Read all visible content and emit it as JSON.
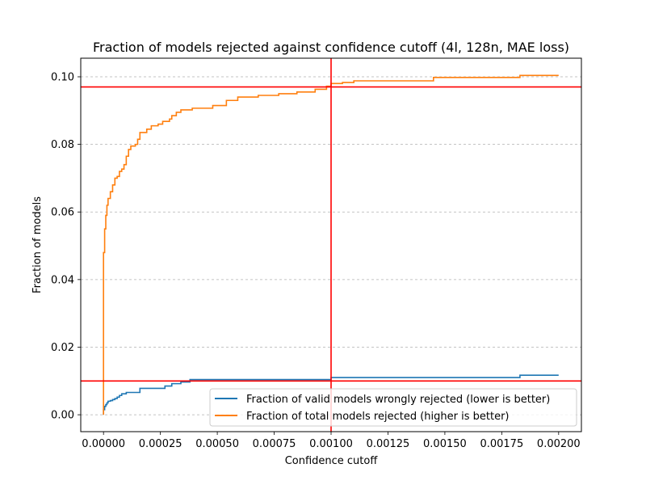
{
  "chart_data": {
    "type": "line",
    "title": "Fraction of models rejected against confidence cutoff (4l, 128n, MAE loss)",
    "xlabel": "Confidence cutoff",
    "ylabel": "Fraction of models",
    "xlim": [
      -0.0001,
      0.0021
    ],
    "ylim": [
      -0.005,
      0.1055
    ],
    "grid": "y-dashed",
    "legend_position": "lower-right",
    "x_ticks": [
      "0.00000",
      "0.00025",
      "0.00050",
      "0.00075",
      "0.00100",
      "0.00125",
      "0.00150",
      "0.00175",
      "0.00200"
    ],
    "x_tick_values": [
      0,
      0.00025,
      0.0005,
      0.00075,
      0.001,
      0.00125,
      0.0015,
      0.00175,
      0.002
    ],
    "y_ticks": [
      "0.00",
      "0.02",
      "0.04",
      "0.06",
      "0.08",
      "0.10"
    ],
    "y_tick_values": [
      0,
      0.02,
      0.04,
      0.06,
      0.08,
      0.1
    ],
    "reference_lines": [
      {
        "orientation": "vertical",
        "value": 0.001,
        "color": "#ff0000"
      },
      {
        "orientation": "horizontal",
        "value": 0.097,
        "color": "#ff0000"
      },
      {
        "orientation": "horizontal",
        "value": 0.01,
        "color": "#ff0000"
      }
    ],
    "series": [
      {
        "name": "Fraction of valid models wrongly rejected (lower is better)",
        "color": "#1f77b4",
        "step": true,
        "points": [
          [
            0.0,
            0.0
          ],
          [
            0.0,
            0.0015
          ],
          [
            5e-06,
            0.0025
          ],
          [
            1e-05,
            0.003
          ],
          [
            1.5e-05,
            0.0035
          ],
          [
            2e-05,
            0.004
          ],
          [
            3e-05,
            0.0042
          ],
          [
            4e-05,
            0.0045
          ],
          [
            5e-05,
            0.0048
          ],
          [
            6e-05,
            0.0052
          ],
          [
            7e-05,
            0.0057
          ],
          [
            8e-05,
            0.0062
          ],
          [
            0.0001,
            0.0066
          ],
          [
            0.00016,
            0.0078
          ],
          [
            0.00027,
            0.0085
          ],
          [
            0.0003,
            0.0092
          ],
          [
            0.00034,
            0.0097
          ],
          [
            0.00038,
            0.0104
          ],
          [
            0.001,
            0.011
          ],
          [
            0.00183,
            0.0117
          ],
          [
            0.002,
            0.0117
          ]
        ]
      },
      {
        "name": "Fraction of total models rejected (higher is better)",
        "color": "#ff7f0e",
        "step": true,
        "points": [
          [
            0.0,
            0.0
          ],
          [
            0.0,
            0.03
          ],
          [
            0.0,
            0.048
          ],
          [
            5e-06,
            0.055
          ],
          [
            1e-05,
            0.059
          ],
          [
            1.5e-05,
            0.062
          ],
          [
            2e-05,
            0.064
          ],
          [
            3e-05,
            0.066
          ],
          [
            4e-05,
            0.068
          ],
          [
            5e-05,
            0.07
          ],
          [
            6e-05,
            0.0705
          ],
          [
            7e-05,
            0.072
          ],
          [
            8e-05,
            0.0727
          ],
          [
            9e-05,
            0.074
          ],
          [
            0.0001,
            0.0765
          ],
          [
            0.00011,
            0.0785
          ],
          [
            0.00012,
            0.0795
          ],
          [
            0.00014,
            0.08
          ],
          [
            0.00015,
            0.0815
          ],
          [
            0.00016,
            0.0835
          ],
          [
            0.00019,
            0.0845
          ],
          [
            0.00021,
            0.0855
          ],
          [
            0.00024,
            0.086
          ],
          [
            0.00026,
            0.0868
          ],
          [
            0.00029,
            0.0875
          ],
          [
            0.0003,
            0.0885
          ],
          [
            0.00032,
            0.0895
          ],
          [
            0.00034,
            0.0902
          ],
          [
            0.00039,
            0.0907
          ],
          [
            0.00048,
            0.0915
          ],
          [
            0.00054,
            0.093
          ],
          [
            0.00059,
            0.094
          ],
          [
            0.00068,
            0.0945
          ],
          [
            0.00077,
            0.095
          ],
          [
            0.00085,
            0.0955
          ],
          [
            0.00093,
            0.0963
          ],
          [
            0.00098,
            0.0972
          ],
          [
            0.001,
            0.098
          ],
          [
            0.00105,
            0.0983
          ],
          [
            0.0011,
            0.0988
          ],
          [
            0.00145,
            0.0998
          ],
          [
            0.00183,
            0.1004
          ],
          [
            0.002,
            0.1004
          ]
        ]
      }
    ]
  }
}
